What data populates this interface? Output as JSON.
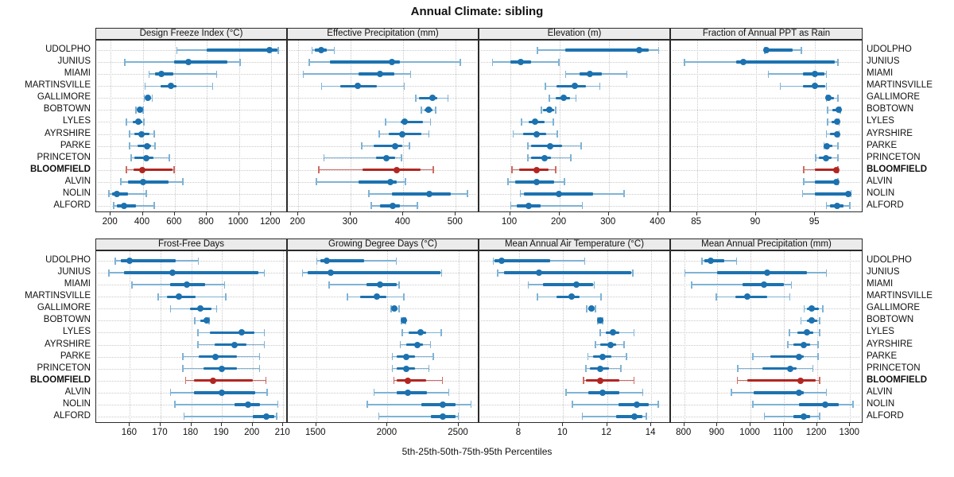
{
  "title": "Annual Climate: sibling",
  "caption": "5th-25th-50th-75th-95th Percentiles",
  "stations": [
    "UDOLPHO",
    "JUNIUS",
    "MIAMI",
    "MARTINSVILLE",
    "GALLIMORE",
    "BOBTOWN",
    "LYLES",
    "AYRSHIRE",
    "PARKE",
    "PRINCETON",
    "BLOOMFIELD",
    "ALVIN",
    "NOLIN",
    "ALFORD"
  ],
  "highlight_station": "BLOOMFIELD",
  "colors": {
    "blue": "#1c72b0",
    "blue_light": "#7fb3d5",
    "red": "#b22621",
    "red_light": "#cf6a63",
    "strip_bg": "#ebebeb",
    "grid": "#c9c9c9",
    "border": "#2b2b2b",
    "text": "#111111"
  },
  "chart_data": {
    "type": "scatter",
    "subtype": "trellis-percentile-dotplot",
    "title": "Annual Climate: sibling",
    "xlabel": "5th-25th-50th-75th-95th Percentiles",
    "percentiles": [
      5,
      25,
      50,
      75,
      95
    ],
    "layout": {
      "rows": 2,
      "cols": 4,
      "grid": "dotted",
      "legend": "none",
      "highlight": "BLOOMFIELD"
    },
    "panels": [
      {
        "title": "Design Freeze Index (°C)",
        "ticks": [
          200,
          400,
          600,
          800,
          1000,
          1200
        ],
        "xlim": [
          110,
          1305
        ],
        "values": {
          "UDOLPHO": [
            610,
            800,
            1190,
            1240,
            1250
          ],
          "JUNIUS": [
            285,
            595,
            685,
            930,
            1010
          ],
          "MIAMI": [
            435,
            475,
            515,
            590,
            865
          ],
          "MARTINSVILLE": [
            410,
            510,
            575,
            610,
            840
          ],
          "GALLIMORE": [
            405,
            420,
            433,
            450,
            463
          ],
          "BOBTOWN": [
            355,
            370,
            383,
            395,
            405
          ],
          "LYLES": [
            295,
            340,
            375,
            400,
            410
          ],
          "AYRSHIRE": [
            315,
            350,
            390,
            440,
            475
          ],
          "PARKE": [
            315,
            370,
            425,
            455,
            480
          ],
          "PRINCETON": [
            325,
            350,
            420,
            465,
            570
          ],
          "BLOOMFIELD": [
            295,
            345,
            395,
            585,
            600
          ],
          "ALVIN": [
            260,
            310,
            400,
            560,
            655
          ],
          "NOLIN": [
            185,
            210,
            240,
            310,
            425
          ],
          "ALFORD": [
            215,
            240,
            285,
            360,
            475
          ]
        }
      },
      {
        "title": "Effective Precipitation (mm)",
        "ticks": [
          200,
          300,
          400,
          500
        ],
        "xlim": [
          180,
          545
        ],
        "values": {
          "UDOLPHO": [
            225,
            231,
            243,
            254,
            270
          ],
          "JUNIUS": [
            220,
            260,
            378,
            393,
            510
          ],
          "MIAMI": [
            208,
            315,
            355,
            383,
            415
          ],
          "MARTINSVILLE": [
            243,
            280,
            313,
            350,
            403
          ],
          "GALLIMORE": [
            423,
            430,
            456,
            465,
            486
          ],
          "BOBTOWN": [
            433,
            440,
            448,
            456,
            463
          ],
          "LYLES": [
            365,
            395,
            403,
            438,
            453
          ],
          "AYRSHIRE": [
            353,
            373,
            398,
            435,
            450
          ],
          "PARKE": [
            320,
            343,
            385,
            398,
            413
          ],
          "PRINCETON": [
            248,
            348,
            367,
            385,
            398
          ],
          "BLOOMFIELD": [
            238,
            323,
            388,
            433,
            458
          ],
          "ALVIN": [
            233,
            315,
            375,
            388,
            405
          ],
          "NOLIN": [
            333,
            378,
            450,
            490,
            523
          ],
          "ALFORD": [
            338,
            355,
            380,
            393,
            428
          ]
        }
      },
      {
        "title": "Elevation (m)",
        "ticks": [
          100,
          200,
          300,
          400
        ],
        "xlim": [
          38,
          426
        ],
        "values": {
          "UDOLPHO": [
            154,
            211,
            362,
            381,
            402
          ],
          "JUNIUS": [
            63,
            100,
            122,
            143,
            200
          ],
          "MIAMI": [
            211,
            240,
            262,
            286,
            338
          ],
          "MARTINSVILLE": [
            170,
            194,
            231,
            254,
            283
          ],
          "GALLIMORE": [
            178,
            192,
            208,
            221,
            235
          ],
          "BOBTOWN": [
            162,
            167,
            179,
            189,
            194
          ],
          "LYLES": [
            122,
            138,
            150,
            170,
            189
          ],
          "AYRSHIRE": [
            105,
            127,
            154,
            173,
            197
          ],
          "PARKE": [
            135,
            143,
            181,
            205,
            245
          ],
          "PRINCETON": [
            135,
            143,
            170,
            183,
            224
          ],
          "BLOOMFIELD": [
            103,
            118,
            154,
            178,
            194
          ],
          "ALVIN": [
            95,
            111,
            154,
            189,
            211
          ],
          "NOLIN": [
            120,
            128,
            199,
            268,
            332
          ],
          "ALFORD": [
            100,
            113,
            138,
            162,
            248
          ]
        }
      },
      {
        "title": "Fraction of Annual PPT as Rain",
        "ticks": [
          85,
          90,
          95
        ],
        "xlim": [
          82.8,
          99.1
        ],
        "values": {
          "UDOLPHO": [
            90.7,
            90.8,
            90.9,
            93.1,
            93.9
          ],
          "JUNIUS": [
            83.9,
            88.3,
            88.9,
            96.7,
            97.0
          ],
          "MIAMI": [
            91.0,
            94.0,
            95.0,
            95.8,
            96.0
          ],
          "MARTINSVILLE": [
            92.0,
            94.0,
            95.0,
            95.9,
            96.0
          ],
          "GALLIMORE": [
            95.9,
            96.0,
            96.1,
            96.6,
            97.0
          ],
          "BOBTOWN": [
            96.0,
            96.5,
            97.0,
            97.1,
            97.2
          ],
          "LYLES": [
            96.0,
            96.4,
            96.9,
            97.0,
            97.1
          ],
          "AYRSHIRE": [
            95.9,
            96.3,
            96.9,
            97.0,
            97.1
          ],
          "PARKE": [
            95.7,
            95.9,
            96.0,
            96.5,
            97.0
          ],
          "PRINCETON": [
            95.0,
            95.3,
            95.9,
            96.4,
            97.0
          ],
          "BLOOMFIELD": [
            94.0,
            95.0,
            96.8,
            96.9,
            97.0
          ],
          "ALVIN": [
            94.0,
            95.0,
            96.8,
            96.9,
            97.0
          ],
          "NOLIN": [
            93.9,
            95.0,
            97.8,
            98.0,
            98.1
          ],
          "ALFORD": [
            95.9,
            96.3,
            96.9,
            97.4,
            98.0
          ]
        }
      },
      {
        "title": "Frost-Free Days",
        "ticks": [
          160,
          170,
          180,
          190,
          200,
          210
        ],
        "xlim": [
          149,
          211.5
        ],
        "values": {
          "UDOLPHO": [
            155,
            157,
            160,
            175,
            182.5
          ],
          "JUNIUS": [
            153,
            158,
            174,
            202,
            204
          ],
          "MIAMI": [
            160.5,
            173,
            178.5,
            184.5,
            191
          ],
          "MARTINSVILLE": [
            169,
            172,
            176,
            181.5,
            191.5
          ],
          "GALLIMORE": [
            173,
            179.5,
            183,
            186.5,
            188.5
          ],
          "BOBTOWN": [
            181,
            183,
            185,
            185.5,
            186
          ],
          "LYLES": [
            182,
            186,
            196.5,
            200.5,
            204
          ],
          "AYRSHIRE": [
            182,
            187.5,
            194,
            198,
            204
          ],
          "PARKE": [
            177,
            182.5,
            188,
            195,
            202.5
          ],
          "PRINCETON": [
            177,
            184,
            190,
            195,
            202.5
          ],
          "BLOOMFIELD": [
            178,
            181,
            187,
            200,
            204.5
          ],
          "ALVIN": [
            173,
            181,
            190,
            201,
            205
          ],
          "NOLIN": [
            174.5,
            194,
            198.5,
            202.5,
            208.5
          ],
          "ALFORD": [
            177.5,
            200,
            204.5,
            207,
            208
          ]
        }
      },
      {
        "title": "Growing Degree Days (°C)",
        "ticks": [
          1500,
          2000,
          2500
        ],
        "xlim": [
          1300,
          2645
        ],
        "values": {
          "UDOLPHO": [
            1500,
            1530,
            1575,
            1835,
            2065
          ],
          "JUNIUS": [
            1400,
            1440,
            1600,
            2370,
            2385
          ],
          "MIAMI": [
            1585,
            1850,
            1945,
            2065,
            2085
          ],
          "MARTINSVILLE": [
            1715,
            1805,
            1925,
            1990,
            2120
          ],
          "GALLIMORE": [
            2020,
            2035,
            2050,
            2070,
            2085
          ],
          "BOBTOWN": [
            2093,
            2105,
            2115,
            2125,
            2130
          ],
          "LYLES": [
            2100,
            2150,
            2230,
            2270,
            2380
          ],
          "AYRSHIRE": [
            2085,
            2130,
            2210,
            2250,
            2305
          ],
          "PARKE": [
            2030,
            2065,
            2130,
            2195,
            2325
          ],
          "PRINCETON": [
            2030,
            2065,
            2130,
            2195,
            2295
          ],
          "BLOOMFIELD": [
            2040,
            2065,
            2140,
            2270,
            2390
          ],
          "ALVIN": [
            1900,
            2065,
            2140,
            2275,
            2435
          ],
          "NOLIN": [
            1855,
            2240,
            2390,
            2480,
            2590
          ],
          "ALFORD": [
            1935,
            2305,
            2390,
            2480,
            2500
          ]
        }
      },
      {
        "title": "Mean Annual Air Temperature (°C)",
        "ticks": [
          8,
          10,
          12,
          14
        ],
        "xlim": [
          6.2,
          14.9
        ],
        "values": {
          "UDOLPHO": [
            6.8,
            6.9,
            7.2,
            9.4,
            11.0
          ],
          "JUNIUS": [
            7.0,
            7.3,
            8.9,
            13.1,
            13.2
          ],
          "MIAMI": [
            8.4,
            9.1,
            10.6,
            11.35,
            11.45
          ],
          "MARTINSVILLE": [
            8.8,
            9.7,
            10.4,
            10.75,
            11.75
          ],
          "GALLIMORE": [
            11.05,
            11.15,
            11.3,
            11.4,
            11.5
          ],
          "BOBTOWN": [
            11.55,
            11.65,
            11.7,
            11.78,
            11.82
          ],
          "LYLES": [
            11.65,
            11.95,
            12.25,
            12.55,
            13.25
          ],
          "AYRSHIRE": [
            11.45,
            11.7,
            12.15,
            12.4,
            12.8
          ],
          "PARKE": [
            11.1,
            11.35,
            11.8,
            12.2,
            12.9
          ],
          "PRINCETON": [
            11.0,
            11.2,
            11.7,
            12.1,
            12.65
          ],
          "BLOOMFIELD": [
            10.9,
            11.05,
            11.7,
            12.55,
            13.25
          ],
          "ALVIN": [
            10.1,
            11.15,
            11.8,
            12.55,
            13.65
          ],
          "NOLIN": [
            10.4,
            12.5,
            13.35,
            13.9,
            14.35
          ],
          "ALFORD": [
            10.85,
            12.4,
            13.25,
            13.6,
            13.8
          ]
        }
      },
      {
        "title": "Mean Annual Precipitation (mm)",
        "ticks": [
          800,
          900,
          1000,
          1100,
          1200,
          1300
        ],
        "xlim": [
          760,
          1340
        ],
        "values": {
          "UDOLPHO": [
            852,
            860,
            880,
            920,
            960
          ],
          "JUNIUS": [
            800,
            900,
            1050,
            1170,
            1230
          ],
          "MIAMI": [
            820,
            975,
            1040,
            1100,
            1125
          ],
          "MARTINSVILLE": [
            895,
            955,
            990,
            1050,
            1120
          ],
          "GALLIMORE": [
            1160,
            1170,
            1185,
            1205,
            1220
          ],
          "BOBTOWN": [
            1150,
            1170,
            1185,
            1200,
            1210
          ],
          "LYLES": [
            1115,
            1140,
            1170,
            1190,
            1210
          ],
          "AYRSHIRE": [
            1110,
            1130,
            1160,
            1180,
            1205
          ],
          "PARKE": [
            1005,
            1060,
            1145,
            1160,
            1205
          ],
          "PRINCETON": [
            960,
            1035,
            1120,
            1140,
            1190
          ],
          "BLOOMFIELD": [
            958,
            990,
            1150,
            1195,
            1210
          ],
          "ALVIN": [
            940,
            1010,
            1145,
            1160,
            1230
          ],
          "NOLIN": [
            1005,
            1145,
            1225,
            1265,
            1310
          ],
          "ALFORD": [
            1040,
            1130,
            1160,
            1180,
            1210
          ]
        }
      }
    ]
  }
}
